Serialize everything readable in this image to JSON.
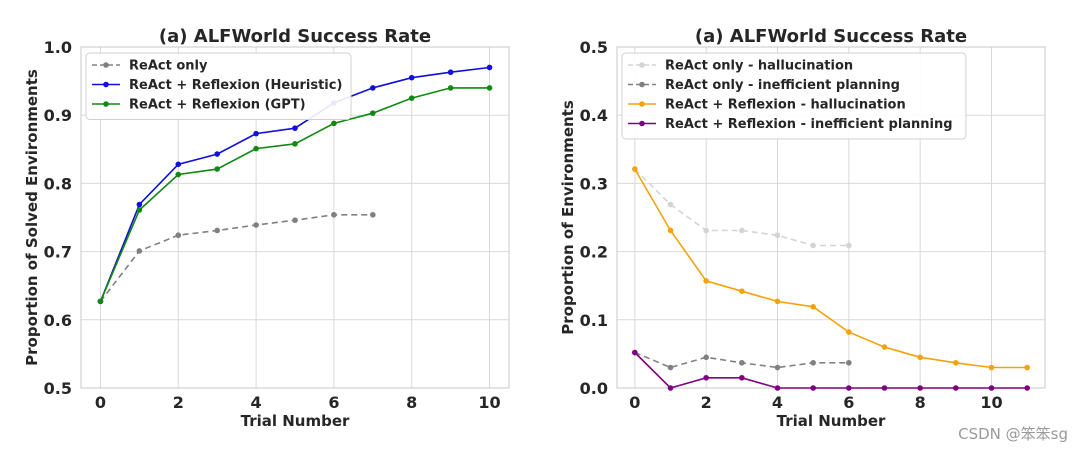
{
  "watermark": "CSDN @笨笨sg",
  "chart_data": [
    {
      "type": "line",
      "title": "(a) ALFWorld Success Rate",
      "xlabel": "Trial Number",
      "ylabel": "Proportion of Solved Environments",
      "xlim": [
        -0.5,
        10.5
      ],
      "ylim": [
        0.5,
        1.0
      ],
      "xticks": [
        0,
        2,
        4,
        6,
        8,
        10
      ],
      "yticks": [
        0.5,
        0.6,
        0.7,
        0.8,
        0.9,
        1.0
      ],
      "ytick_labels": [
        "0.5",
        "0.6",
        "0.7",
        "0.8",
        "0.9",
        "1.0"
      ],
      "grid": true,
      "legend_position": "upper-left",
      "series": [
        {
          "name": "ReAct only",
          "color": "#808080",
          "dash": true,
          "x": [
            0,
            1,
            2,
            3,
            4,
            5,
            6,
            7
          ],
          "y": [
            0.627,
            0.701,
            0.724,
            0.731,
            0.739,
            0.746,
            0.754,
            0.754
          ]
        },
        {
          "name": "ReAct + Reflexion (Heuristic)",
          "color": "#1010d8",
          "dash": false,
          "x": [
            0,
            1,
            2,
            3,
            4,
            5,
            6,
            7,
            8,
            9,
            10
          ],
          "y": [
            0.627,
            0.769,
            0.828,
            0.843,
            0.873,
            0.881,
            0.918,
            0.94,
            0.955,
            0.963,
            0.97
          ]
        },
        {
          "name": "ReAct + Reflexion (GPT)",
          "color": "#118811",
          "dash": false,
          "x": [
            0,
            1,
            2,
            3,
            4,
            5,
            6,
            7,
            8,
            9,
            10
          ],
          "y": [
            0.627,
            0.761,
            0.813,
            0.821,
            0.851,
            0.858,
            0.888,
            0.903,
            0.925,
            0.94,
            0.94
          ]
        }
      ]
    },
    {
      "type": "line",
      "title": "(a) ALFWorld Success Rate",
      "xlabel": "Trial Number",
      "ylabel": "Proportion of Environments",
      "xlim": [
        -0.5,
        11.5
      ],
      "ylim": [
        0.0,
        0.5
      ],
      "xticks": [
        0,
        2,
        4,
        6,
        8,
        10
      ],
      "yticks": [
        0.0,
        0.1,
        0.2,
        0.3,
        0.4,
        0.5
      ],
      "ytick_labels": [
        "0.0",
        "0.1",
        "0.2",
        "0.3",
        "0.4",
        "0.5"
      ],
      "grid": true,
      "legend_position": "upper-left",
      "series": [
        {
          "name": "ReAct only - hallucination",
          "color": "#d4d4d4",
          "dash": true,
          "x": [
            0,
            1,
            2,
            3,
            4,
            5,
            6
          ],
          "y": [
            0.321,
            0.269,
            0.231,
            0.231,
            0.224,
            0.209,
            0.209
          ]
        },
        {
          "name": "ReAct only - inefficient planning",
          "color": "#808080",
          "dash": true,
          "x": [
            0,
            1,
            2,
            3,
            4,
            5,
            6
          ],
          "y": [
            0.052,
            0.03,
            0.045,
            0.037,
            0.03,
            0.037,
            0.037
          ]
        },
        {
          "name": "ReAct + Reflexion - hallucination",
          "color": "#f5a20a",
          "dash": false,
          "x": [
            0,
            1,
            2,
            3,
            4,
            5,
            6,
            7,
            8,
            9,
            10,
            11
          ],
          "y": [
            0.321,
            0.231,
            0.157,
            0.142,
            0.127,
            0.119,
            0.082,
            0.06,
            0.045,
            0.037,
            0.03,
            0.03
          ]
        },
        {
          "name": "ReAct + Reflexion - inefficient planning",
          "color": "#800080",
          "dash": false,
          "x": [
            0,
            1,
            2,
            3,
            4,
            5,
            6,
            7,
            8,
            9,
            10,
            11
          ],
          "y": [
            0.052,
            0.0,
            0.015,
            0.015,
            0.0,
            0.0,
            0.0,
            0.0,
            0.0,
            0.0,
            0.0,
            0.0
          ]
        }
      ]
    }
  ]
}
